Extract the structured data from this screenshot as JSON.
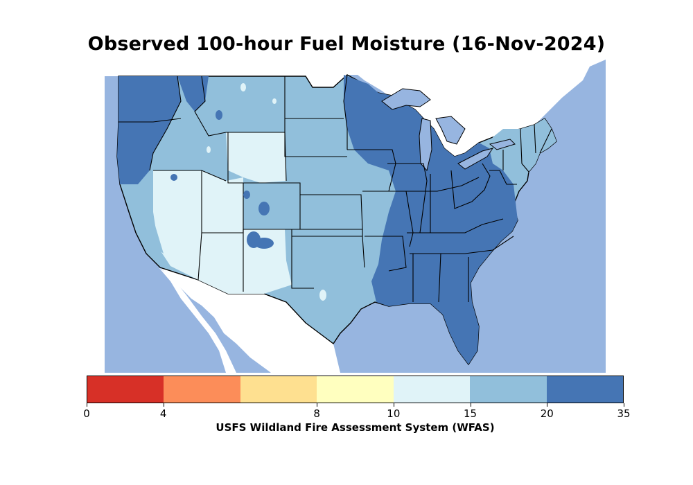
{
  "title": "Observed 100-hour Fuel Moisture (16-Nov-2024)",
  "colorbar": {
    "label": "USFS Wildland Fire Assessment System (WFAS)",
    "ticks": [
      "0",
      "4",
      "8",
      "10",
      "15",
      "20",
      "35"
    ],
    "boundaries": [
      0,
      4,
      6,
      8,
      10,
      15,
      20,
      35
    ],
    "colors": [
      "#d73027",
      "#fc8d59",
      "#fee090",
      "#ffffbf",
      "#e0f3f8",
      "#91bfdb",
      "#4575b4"
    ]
  },
  "map": {
    "ocean_color": "#97b5e0",
    "land_outside_color": "#ffffff",
    "region": "contiguous-us"
  }
}
